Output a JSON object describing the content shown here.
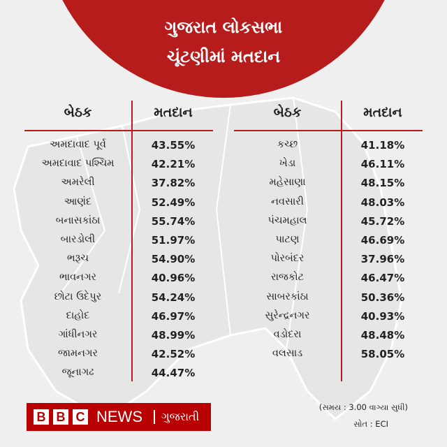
{
  "header": {
    "line1": "ગુજરાત લોકસભા",
    "line2": "ચૂંટણીમાં મતદાન"
  },
  "left_table": {
    "col_seat": "બેઠક",
    "col_turnout": "મતદાન",
    "rows": [
      {
        "name": "અમદાવાદ પૂર્વ",
        "value": "43.55%"
      },
      {
        "name": "અમદાવાદ પશ્ચિમ",
        "value": "42.21%"
      },
      {
        "name": "અમરેલી",
        "value": "37.82%"
      },
      {
        "name": "આણંદ",
        "value": "52.49%"
      },
      {
        "name": "બનાસકાંઠા",
        "value": "55.74%"
      },
      {
        "name": "બારડોલી",
        "value": "51.97%"
      },
      {
        "name": "ભરૂચ",
        "value": "54.90%"
      },
      {
        "name": "ભાવનગર",
        "value": "40.96%"
      },
      {
        "name": "છોટા ઉદેપુર",
        "value": "54.24%"
      },
      {
        "name": "દાહોદ",
        "value": "46.97%"
      },
      {
        "name": "ગાંધીનગર",
        "value": "48.99%"
      },
      {
        "name": "જામનગર",
        "value": "42.52%"
      },
      {
        "name": "જૂનાગઢ",
        "value": "44.47%"
      }
    ]
  },
  "right_table": {
    "col_seat": "બેઠક",
    "col_turnout": "મતદાન",
    "rows": [
      {
        "name": "કચ્છ",
        "value": "41.18%"
      },
      {
        "name": "ખેડા",
        "value": "46.11%"
      },
      {
        "name": "મહેસાણા",
        "value": "48.15%"
      },
      {
        "name": "નવસારી",
        "value": "48.03%"
      },
      {
        "name": "પંચમહાલ",
        "value": "45.72%"
      },
      {
        "name": "પાટણ",
        "value": "46.69%"
      },
      {
        "name": "પોરબંદર",
        "value": "37.96%"
      },
      {
        "name": "રાજકોટ",
        "value": "46.47%"
      },
      {
        "name": "સાબરકાંઠા",
        "value": "50.36%"
      },
      {
        "name": "સુરેન્દ્રનગર",
        "value": "40.93%"
      },
      {
        "name": "વડોદરા",
        "value": "48.48%"
      },
      {
        "name": "વલસાડ",
        "value": "58.05%"
      }
    ]
  },
  "logo": {
    "b1": "B",
    "b2": "B",
    "b3": "C",
    "news": "NEWS",
    "lang": "ગુજરાતી"
  },
  "footer": {
    "note": "(સમય : 3.00 વાગ્યા સુધી)",
    "source": "સોત : ECI"
  },
  "colors": {
    "accent": "#b71c1c",
    "background": "#efefef"
  }
}
